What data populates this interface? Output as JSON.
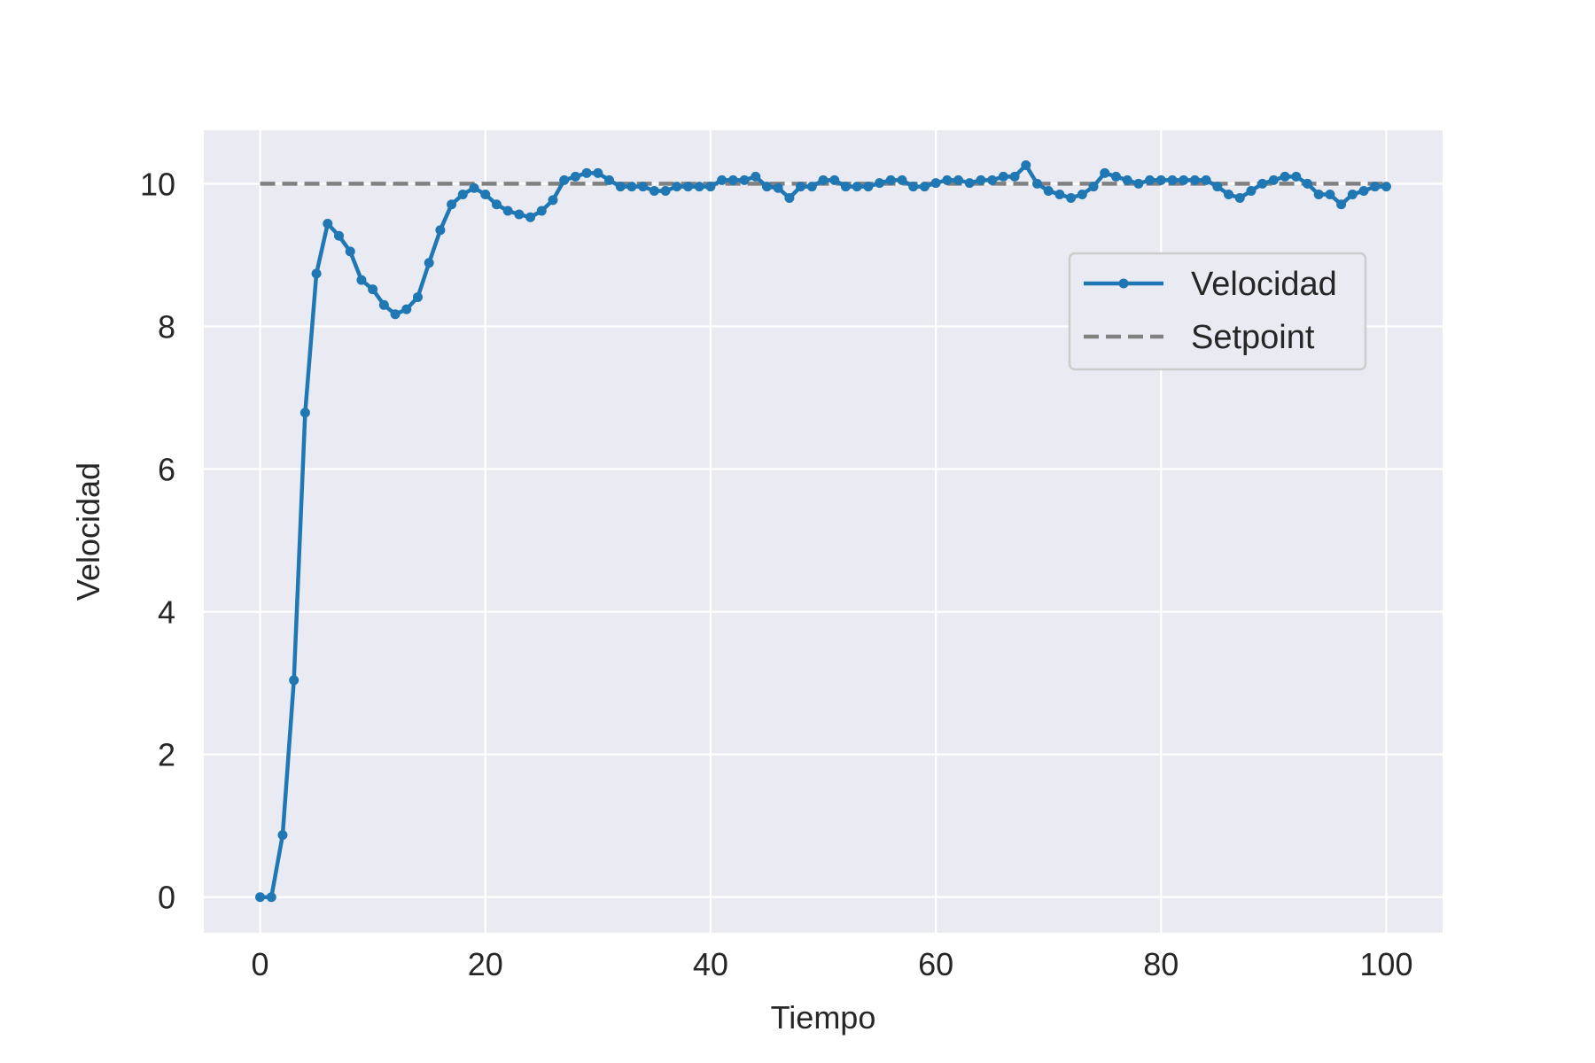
{
  "chart_data": {
    "type": "line",
    "xlabel": "Tiempo",
    "ylabel": "Velocidad",
    "xlim": [
      -5,
      105
    ],
    "ylim": [
      -0.5,
      10.75
    ],
    "xticks": [
      0,
      20,
      40,
      60,
      80,
      100
    ],
    "yticks": [
      0,
      2,
      4,
      6,
      8,
      10
    ],
    "grid": true,
    "legend_position": "upper right",
    "colors": {
      "background": "#eaeaf2",
      "grid": "#ffffff",
      "velocidad": "#1f77b4",
      "setpoint": "#808080"
    },
    "series": [
      {
        "name": "Velocidad",
        "style": "solid-with-markers",
        "x": [
          0,
          1,
          2,
          3,
          4,
          5,
          6,
          7,
          8,
          9,
          10,
          11,
          12,
          13,
          14,
          15,
          16,
          17,
          18,
          19,
          20,
          21,
          22,
          23,
          24,
          25,
          26,
          27,
          28,
          29,
          30,
          31,
          32,
          33,
          34,
          35,
          36,
          37,
          38,
          39,
          40,
          41,
          42,
          43,
          44,
          45,
          46,
          47,
          48,
          49,
          50,
          51,
          52,
          53,
          54,
          55,
          56,
          57,
          58,
          59,
          60,
          61,
          62,
          63,
          64,
          65,
          66,
          67,
          68,
          69,
          70,
          71,
          72,
          73,
          74,
          75,
          76,
          77,
          78,
          79,
          80,
          81,
          82,
          83,
          84,
          85,
          86,
          87,
          88,
          89,
          90,
          91,
          92,
          93,
          94,
          95,
          96,
          97,
          98,
          99,
          100
        ],
        "y": [
          0,
          0,
          0.87,
          3.04,
          6.79,
          8.74,
          9.44,
          9.27,
          9.05,
          8.65,
          8.52,
          8.3,
          8.17,
          8.24,
          8.41,
          8.89,
          9.35,
          9.71,
          9.85,
          9.94,
          9.85,
          9.71,
          9.62,
          9.57,
          9.53,
          9.62,
          9.77,
          10.05,
          10.1,
          10.15,
          10.15,
          10.05,
          9.96,
          9.96,
          9.96,
          9.9,
          9.9,
          9.96,
          9.96,
          9.96,
          9.96,
          10.05,
          10.05,
          10.05,
          10.1,
          9.96,
          9.94,
          9.8,
          9.96,
          9.96,
          10.05,
          10.05,
          9.96,
          9.96,
          9.96,
          10.01,
          10.05,
          10.05,
          9.96,
          9.96,
          10.01,
          10.05,
          10.05,
          10.01,
          10.05,
          10.05,
          10.1,
          10.1,
          10.26,
          10.0,
          9.9,
          9.85,
          9.8,
          9.85,
          9.96,
          10.15,
          10.1,
          10.05,
          10.0,
          10.05,
          10.05,
          10.05,
          10.05,
          10.05,
          10.05,
          9.96,
          9.85,
          9.8,
          9.9,
          10.0,
          10.05,
          10.1,
          10.1,
          10.0,
          9.85,
          9.85,
          9.71,
          9.85,
          9.9,
          9.96,
          9.96
        ]
      },
      {
        "name": "Setpoint",
        "style": "dashed",
        "x": [
          0,
          100
        ],
        "y": [
          10,
          10
        ]
      }
    ]
  }
}
